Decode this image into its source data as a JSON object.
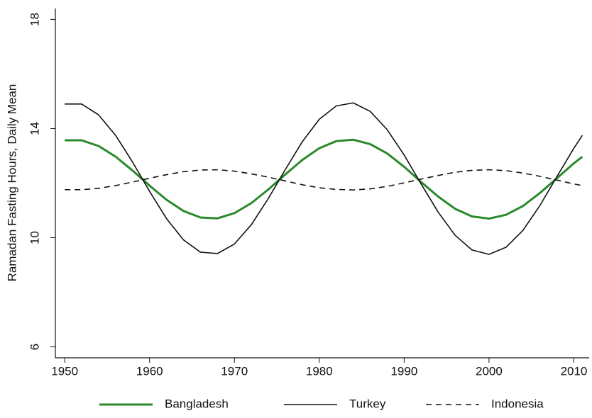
{
  "chart_data": {
    "type": "line",
    "y_label": "Ramadan Fasting Hours, Daily Mean",
    "x": [
      1950,
      1952,
      1954,
      1956,
      1958,
      1960,
      1962,
      1964,
      1966,
      1968,
      1970,
      1972,
      1974,
      1976,
      1978,
      1980,
      1982,
      1984,
      1986,
      1988,
      1990,
      1992,
      1994,
      1996,
      1998,
      2000,
      2002,
      2004,
      2006,
      2008,
      2010,
      2011
    ],
    "series": [
      {
        "name": "Bangladesh",
        "color": "#2a8a2a",
        "dash": "none",
        "width": 3,
        "values": [
          13.57,
          13.57,
          13.36,
          12.97,
          12.46,
          11.91,
          11.39,
          10.98,
          10.74,
          10.71,
          10.9,
          11.27,
          11.77,
          12.32,
          12.85,
          13.28,
          13.54,
          13.59,
          13.43,
          13.09,
          12.6,
          12.04,
          11.51,
          11.06,
          10.78,
          10.7,
          10.84,
          11.16,
          11.64,
          12.18,
          12.73,
          12.97
        ]
      },
      {
        "name": "Turkey",
        "color": "#111111",
        "dash": "none",
        "width": 1.6,
        "values": [
          14.9,
          14.9,
          14.5,
          13.75,
          12.77,
          11.7,
          10.7,
          9.92,
          9.47,
          9.42,
          9.77,
          10.48,
          11.44,
          12.5,
          13.52,
          14.34,
          14.83,
          14.94,
          14.63,
          13.96,
          13.03,
          11.97,
          10.94,
          10.09,
          9.55,
          9.39,
          9.65,
          10.27,
          11.18,
          12.24,
          13.28,
          13.75
        ]
      },
      {
        "name": "Indonesia",
        "color": "#111111",
        "dash": "8,6",
        "width": 1.6,
        "values": [
          11.76,
          11.76,
          11.81,
          11.91,
          12.04,
          12.18,
          12.31,
          12.42,
          12.48,
          12.49,
          12.44,
          12.34,
          12.22,
          12.08,
          11.94,
          11.83,
          11.77,
          11.75,
          11.79,
          11.88,
          12.01,
          12.15,
          12.28,
          12.4,
          12.47,
          12.49,
          12.46,
          12.37,
          12.25,
          12.11,
          11.97,
          11.91
        ]
      }
    ],
    "xlim": [
      1948.9,
      2011.8
    ],
    "ylim": [
      5.6,
      18.4
    ],
    "xticks": [
      1950,
      1960,
      1970,
      1980,
      1990,
      2000,
      2010
    ],
    "yticks": [
      6,
      10,
      14,
      18
    ],
    "grid": false
  }
}
